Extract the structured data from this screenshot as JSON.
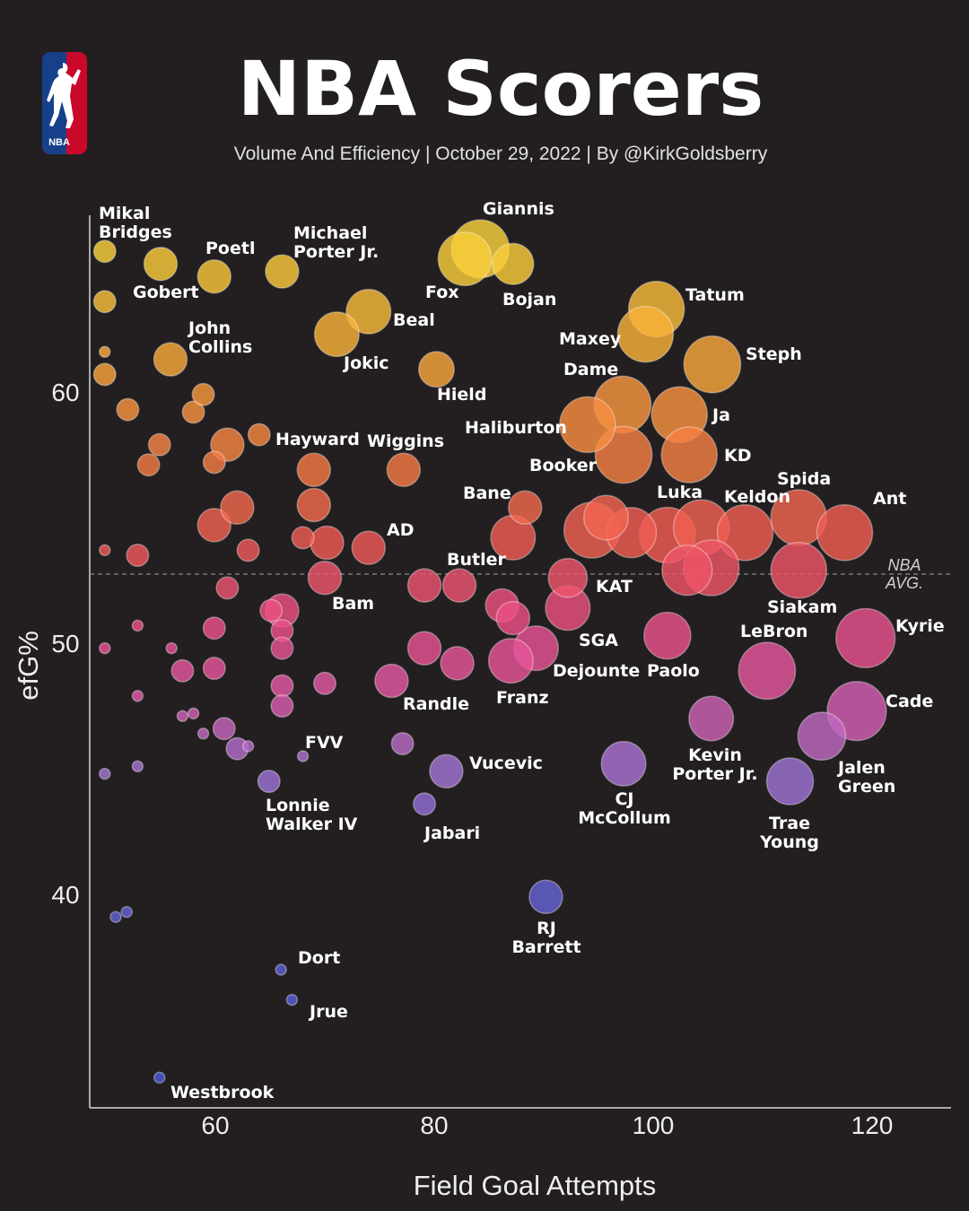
{
  "header": {
    "title": "NBA Scorers",
    "subtitle": "Volume And Efficiency | October 29, 2022 | By @KirkGoldsberry",
    "logo_text": "NBA"
  },
  "colors": {
    "background": "#231f20",
    "logo_red": "#c9082a",
    "logo_blue": "#17408b",
    "gradient_by_efg": [
      {
        "efg": 66,
        "color": "#f9d43a"
      },
      {
        "efg": 61,
        "color": "#f8a63c"
      },
      {
        "efg": 57,
        "color": "#f47b45"
      },
      {
        "efg": 54,
        "color": "#ef5a55"
      },
      {
        "efg": 51,
        "color": "#ec4f86"
      },
      {
        "efg": 48,
        "color": "#e25aa8"
      },
      {
        "efg": 45,
        "color": "#a575d6"
      },
      {
        "efg": 41,
        "color": "#6b64d6"
      },
      {
        "efg": 33,
        "color": "#4c5ad8"
      }
    ]
  },
  "chart_data": {
    "type": "scatter",
    "title": "NBA Scorers",
    "xlabel": "Field Goal Attempts",
    "ylabel": "efG%",
    "xlim": [
      48.5,
      127.2
    ],
    "ylim": [
      31.5,
      67
    ],
    "xticks": [
      60,
      80,
      100,
      120
    ],
    "yticks": [
      40,
      50,
      60
    ],
    "grid": false,
    "reference_line": {
      "y": 52.75,
      "label": "NBA\nAVG."
    },
    "size_note_scale": "relative 1-5",
    "points": [
      {
        "label": "Mikal\nBridges",
        "x": 49.9,
        "y": 65.6,
        "size": 2
      },
      {
        "label": "Gobert",
        "x": 55.0,
        "y": 65.1,
        "size": 3
      },
      {
        "label": "Poetl",
        "x": 59.9,
        "y": 64.6,
        "size": 3
      },
      {
        "label": "Michael\nPorter Jr.",
        "x": 66.1,
        "y": 64.8,
        "size": 3
      },
      {
        "label": "Fox",
        "x": 82.8,
        "y": 65.3,
        "size": 4.8
      },
      {
        "label": "Giannis",
        "x": 84.2,
        "y": 65.7,
        "size": 5.2
      },
      {
        "label": "Bojan",
        "x": 87.2,
        "y": 65.1,
        "size": 3.7
      },
      {
        "label": "Beal",
        "x": 74.0,
        "y": 63.2,
        "size": 4
      },
      {
        "label": "Jokic",
        "x": 71.1,
        "y": 62.3,
        "size": 4
      },
      {
        "label": "Hield",
        "x": 80.2,
        "y": 60.9,
        "size": 3.2
      },
      {
        "label": "John\nCollins",
        "x": 55.9,
        "y": 61.3,
        "size": 3
      },
      {
        "label": "Tatum",
        "x": 100.3,
        "y": 63.3,
        "size": 5
      },
      {
        "label": "Maxey",
        "x": 99.3,
        "y": 62.3,
        "size": 5
      },
      {
        "label": "Steph",
        "x": 105.4,
        "y": 61.1,
        "size": 5.1
      },
      {
        "label": "Dame",
        "x": 97.2,
        "y": 59.5,
        "size": 5.1
      },
      {
        "label": "Haliburton",
        "x": 94.0,
        "y": 58.7,
        "size": 5
      },
      {
        "label": "Ja",
        "x": 102.4,
        "y": 59.1,
        "size": 5
      },
      {
        "label": "KD",
        "x": 103.3,
        "y": 57.5,
        "size": 5
      },
      {
        "label": "Booker",
        "x": 97.3,
        "y": 57.5,
        "size": 5.1
      },
      {
        "label": "Hayward",
        "x": 64.0,
        "y": 58.3,
        "size": 2
      },
      {
        "label": "Wiggins",
        "x": 77.2,
        "y": 56.9,
        "size": 3
      },
      {
        "label": "Bane",
        "x": 88.3,
        "y": 55.4,
        "size": 3
      },
      {
        "label": "",
        "x": 95.7,
        "y": 55.0,
        "size": 4
      },
      {
        "label": "",
        "x": 94.4,
        "y": 54.5,
        "size": 5
      },
      {
        "label": "",
        "x": 98.0,
        "y": 54.4,
        "size": 4.5
      },
      {
        "label": "",
        "x": 101.3,
        "y": 54.3,
        "size": 5
      },
      {
        "label": "Luka",
        "x": 104.4,
        "y": 54.6,
        "size": 5
      },
      {
        "label": "Keldon",
        "x": 108.4,
        "y": 54.4,
        "size": 5
      },
      {
        "label": "Spida",
        "x": 113.3,
        "y": 55.0,
        "size": 5
      },
      {
        "label": "Ant",
        "x": 117.5,
        "y": 54.4,
        "size": 5
      },
      {
        "label": "",
        "x": 103.1,
        "y": 52.9,
        "size": 4.5
      },
      {
        "label": "",
        "x": 105.3,
        "y": 53.0,
        "size": 5
      },
      {
        "label": "Siakam",
        "x": 113.3,
        "y": 52.9,
        "size": 5
      },
      {
        "label": "KAT",
        "x": 92.2,
        "y": 52.6,
        "size": 3.5
      },
      {
        "label": "Butler",
        "x": 82.3,
        "y": 52.3,
        "size": 3
      },
      {
        "label": "AD",
        "x": 74.0,
        "y": 53.8,
        "size": 3
      },
      {
        "label": "Bam",
        "x": 70.0,
        "y": 52.6,
        "size": 3
      },
      {
        "label": "SGA",
        "x": 92.2,
        "y": 51.4,
        "size": 4
      },
      {
        "label": "Dejounte",
        "x": 89.3,
        "y": 49.8,
        "size": 4
      },
      {
        "label": "Franz",
        "x": 87.0,
        "y": 49.3,
        "size": 4
      },
      {
        "label": "Paolo",
        "x": 101.3,
        "y": 50.3,
        "size": 4.2
      },
      {
        "label": "LeBron",
        "x": 110.4,
        "y": 48.9,
        "size": 5.1
      },
      {
        "label": "Kyrie",
        "x": 119.4,
        "y": 50.2,
        "size": 5.3
      },
      {
        "label": "Cade",
        "x": 118.6,
        "y": 47.3,
        "size": 5.3
      },
      {
        "label": "Jalen\nGreen",
        "x": 115.4,
        "y": 46.3,
        "size": 4.3
      },
      {
        "label": "Kevin\nPorter Jr.",
        "x": 105.3,
        "y": 47.0,
        "size": 4
      },
      {
        "label": "Trae\nYoung",
        "x": 112.5,
        "y": 44.5,
        "size": 4.2
      },
      {
        "label": "CJ\nMcCollum",
        "x": 97.3,
        "y": 45.2,
        "size": 4
      },
      {
        "label": "Vucevic",
        "x": 81.1,
        "y": 44.9,
        "size": 3
      },
      {
        "label": "Jabari",
        "x": 79.1,
        "y": 43.6,
        "size": 2
      },
      {
        "label": "RJ\nBarrett",
        "x": 90.2,
        "y": 39.9,
        "size": 3
      },
      {
        "label": "Randle",
        "x": 76.1,
        "y": 48.5,
        "size": 3
      },
      {
        "label": "FVV",
        "x": 68.0,
        "y": 45.5,
        "size": 1
      },
      {
        "label": "Lonnie\nWalker IV",
        "x": 64.9,
        "y": 44.5,
        "size": 2
      },
      {
        "label": "Dort",
        "x": 66.0,
        "y": 37.0,
        "size": 1
      },
      {
        "label": "Jrue",
        "x": 67.0,
        "y": 35.8,
        "size": 1
      },
      {
        "label": "Westbrook",
        "x": 54.9,
        "y": 32.7,
        "size": 1
      },
      {
        "label": "",
        "x": 49.9,
        "y": 63.6,
        "size": 2
      },
      {
        "label": "",
        "x": 49.9,
        "y": 61.6,
        "size": 1
      },
      {
        "label": "",
        "x": 49.9,
        "y": 60.7,
        "size": 2
      },
      {
        "label": "",
        "x": 52.0,
        "y": 59.3,
        "size": 2
      },
      {
        "label": "",
        "x": 53.9,
        "y": 57.1,
        "size": 2
      },
      {
        "label": "",
        "x": 54.9,
        "y": 57.9,
        "size": 2
      },
      {
        "label": "",
        "x": 58.0,
        "y": 59.2,
        "size": 2
      },
      {
        "label": "",
        "x": 58.9,
        "y": 59.9,
        "size": 2
      },
      {
        "label": "",
        "x": 59.9,
        "y": 57.2,
        "size": 2
      },
      {
        "label": "",
        "x": 61.1,
        "y": 57.9,
        "size": 3
      },
      {
        "label": "",
        "x": 59.9,
        "y": 54.7,
        "size": 3
      },
      {
        "label": "",
        "x": 62.0,
        "y": 55.4,
        "size": 3
      },
      {
        "label": "",
        "x": 63.0,
        "y": 53.7,
        "size": 2
      },
      {
        "label": "",
        "x": 69.0,
        "y": 56.9,
        "size": 3
      },
      {
        "label": "",
        "x": 69.0,
        "y": 55.5,
        "size": 3
      },
      {
        "label": "",
        "x": 68.0,
        "y": 54.2,
        "size": 2
      },
      {
        "label": "",
        "x": 70.2,
        "y": 54.0,
        "size": 3
      },
      {
        "label": "",
        "x": 49.9,
        "y": 53.7,
        "size": 1
      },
      {
        "label": "",
        "x": 52.9,
        "y": 53.5,
        "size": 2
      },
      {
        "label": "",
        "x": 61.1,
        "y": 52.2,
        "size": 2
      },
      {
        "label": "",
        "x": 52.9,
        "y": 50.7,
        "size": 1
      },
      {
        "label": "",
        "x": 49.9,
        "y": 49.8,
        "size": 1
      },
      {
        "label": "",
        "x": 56.0,
        "y": 49.8,
        "size": 1
      },
      {
        "label": "",
        "x": 59.9,
        "y": 50.6,
        "size": 2
      },
      {
        "label": "",
        "x": 57.0,
        "y": 48.9,
        "size": 2
      },
      {
        "label": "",
        "x": 59.9,
        "y": 49.0,
        "size": 2
      },
      {
        "label": "",
        "x": 52.9,
        "y": 47.9,
        "size": 1
      },
      {
        "label": "",
        "x": 57.0,
        "y": 47.1,
        "size": 1
      },
      {
        "label": "",
        "x": 58.0,
        "y": 47.2,
        "size": 1
      },
      {
        "label": "",
        "x": 58.9,
        "y": 46.4,
        "size": 1
      },
      {
        "label": "",
        "x": 60.8,
        "y": 46.6,
        "size": 2
      },
      {
        "label": "",
        "x": 62.0,
        "y": 45.8,
        "size": 2
      },
      {
        "label": "",
        "x": 63.0,
        "y": 45.9,
        "size": 1
      },
      {
        "label": "",
        "x": 66.1,
        "y": 51.3,
        "size": 3
      },
      {
        "label": "",
        "x": 65.1,
        "y": 51.3,
        "size": 2
      },
      {
        "label": "",
        "x": 66.1,
        "y": 50.5,
        "size": 2
      },
      {
        "label": "",
        "x": 66.1,
        "y": 49.8,
        "size": 2
      },
      {
        "label": "",
        "x": 66.1,
        "y": 48.3,
        "size": 2
      },
      {
        "label": "",
        "x": 66.1,
        "y": 47.5,
        "size": 2
      },
      {
        "label": "",
        "x": 70.0,
        "y": 48.4,
        "size": 2
      },
      {
        "label": "",
        "x": 49.9,
        "y": 44.8,
        "size": 1
      },
      {
        "label": "",
        "x": 52.9,
        "y": 45.1,
        "size": 1
      },
      {
        "label": "",
        "x": 50.9,
        "y": 39.1,
        "size": 1
      },
      {
        "label": "",
        "x": 51.9,
        "y": 39.3,
        "size": 1
      },
      {
        "label": "",
        "x": 77.1,
        "y": 46.0,
        "size": 2
      },
      {
        "label": "",
        "x": 79.1,
        "y": 49.8,
        "size": 3
      },
      {
        "label": "",
        "x": 79.1,
        "y": 52.3,
        "size": 3
      },
      {
        "label": "",
        "x": 82.1,
        "y": 49.2,
        "size": 3
      },
      {
        "label": "",
        "x": 86.2,
        "y": 51.5,
        "size": 3
      },
      {
        "label": "",
        "x": 87.2,
        "y": 51.0,
        "size": 3
      },
      {
        "label": "",
        "x": 87.2,
        "y": 54.2,
        "size": 4
      }
    ]
  }
}
